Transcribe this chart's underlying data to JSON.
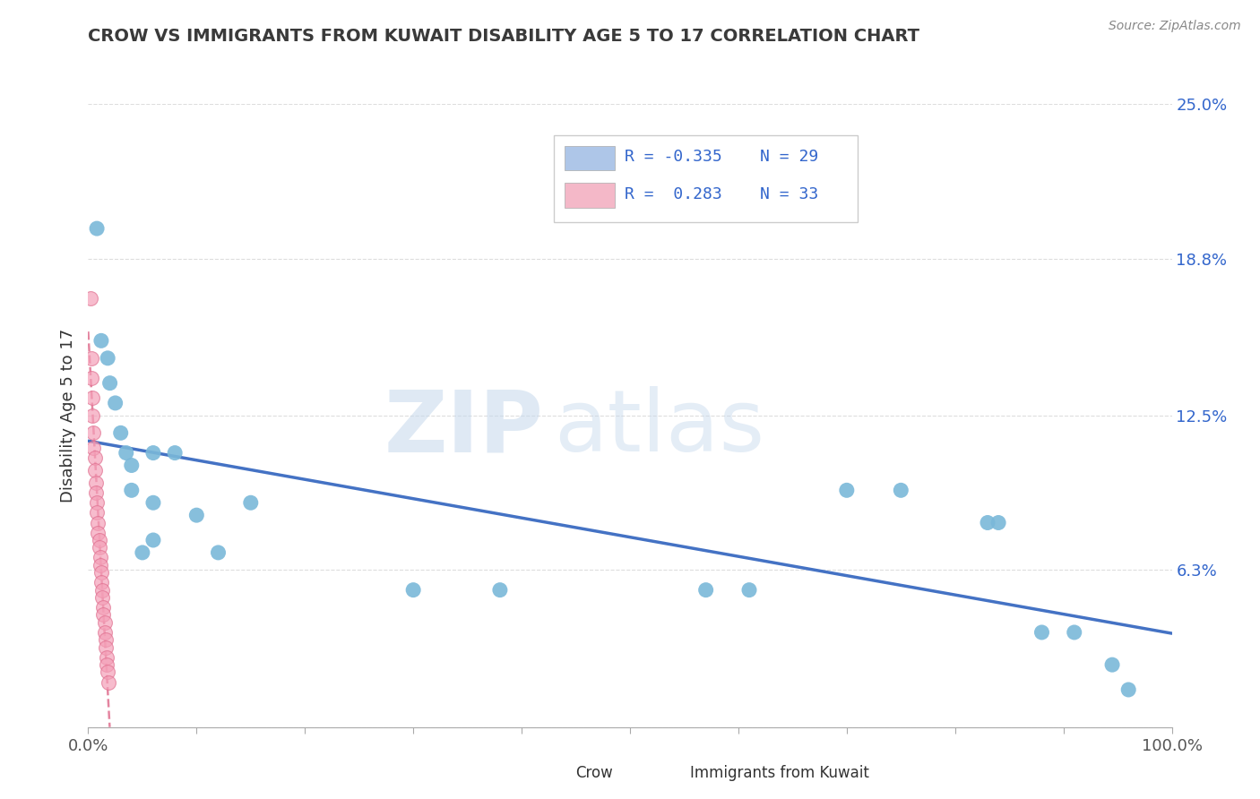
{
  "title": "CROW VS IMMIGRANTS FROM KUWAIT DISABILITY AGE 5 TO 17 CORRELATION CHART",
  "source": "Source: ZipAtlas.com",
  "ylabel": "Disability Age 5 to 17",
  "xlim": [
    0.0,
    1.0
  ],
  "ylim": [
    0.0,
    0.25
  ],
  "yticks": [
    0.0,
    0.063,
    0.125,
    0.188,
    0.25
  ],
  "ytick_labels": [
    "",
    "6.3%",
    "12.5%",
    "18.8%",
    "25.0%"
  ],
  "xtick_labels": [
    "0.0%",
    "100.0%"
  ],
  "watermark_zip": "ZIP",
  "watermark_atlas": "atlas",
  "legend_entries": [
    {
      "label_r": "R = -0.335",
      "label_n": "N = 29",
      "color": "#aec6e8"
    },
    {
      "label_r": "R =  0.283",
      "label_n": "N = 33",
      "color": "#f4b8c8"
    }
  ],
  "crow_color": "#7ab8d9",
  "crow_edge": "none",
  "immigrant_color": "#f4a0b8",
  "immigrant_edge": "#e07090",
  "crow_line_color": "#4472c4",
  "immigrant_line_color": "#e07090",
  "crow_points": [
    [
      0.008,
      0.2
    ],
    [
      0.012,
      0.155
    ],
    [
      0.018,
      0.148
    ],
    [
      0.02,
      0.138
    ],
    [
      0.025,
      0.13
    ],
    [
      0.03,
      0.118
    ],
    [
      0.035,
      0.11
    ],
    [
      0.04,
      0.105
    ],
    [
      0.06,
      0.11
    ],
    [
      0.08,
      0.11
    ],
    [
      0.04,
      0.095
    ],
    [
      0.06,
      0.09
    ],
    [
      0.1,
      0.085
    ],
    [
      0.15,
      0.09
    ],
    [
      0.06,
      0.075
    ],
    [
      0.12,
      0.07
    ],
    [
      0.05,
      0.07
    ],
    [
      0.3,
      0.055
    ],
    [
      0.38,
      0.055
    ],
    [
      0.57,
      0.055
    ],
    [
      0.61,
      0.055
    ],
    [
      0.7,
      0.095
    ],
    [
      0.75,
      0.095
    ],
    [
      0.83,
      0.082
    ],
    [
      0.84,
      0.082
    ],
    [
      0.88,
      0.038
    ],
    [
      0.91,
      0.038
    ],
    [
      0.945,
      0.025
    ],
    [
      0.96,
      0.015
    ]
  ],
  "immigrant_points": [
    [
      0.002,
      0.172
    ],
    [
      0.003,
      0.148
    ],
    [
      0.003,
      0.14
    ],
    [
      0.004,
      0.132
    ],
    [
      0.004,
      0.125
    ],
    [
      0.005,
      0.118
    ],
    [
      0.005,
      0.112
    ],
    [
      0.006,
      0.108
    ],
    [
      0.006,
      0.103
    ],
    [
      0.007,
      0.098
    ],
    [
      0.007,
      0.094
    ],
    [
      0.008,
      0.09
    ],
    [
      0.008,
      0.086
    ],
    [
      0.009,
      0.082
    ],
    [
      0.009,
      0.078
    ],
    [
      0.01,
      0.075
    ],
    [
      0.01,
      0.072
    ],
    [
      0.011,
      0.068
    ],
    [
      0.011,
      0.065
    ],
    [
      0.012,
      0.062
    ],
    [
      0.012,
      0.058
    ],
    [
      0.013,
      0.055
    ],
    [
      0.013,
      0.052
    ],
    [
      0.014,
      0.048
    ],
    [
      0.014,
      0.045
    ],
    [
      0.015,
      0.042
    ],
    [
      0.015,
      0.038
    ],
    [
      0.016,
      0.035
    ],
    [
      0.016,
      0.032
    ],
    [
      0.017,
      0.028
    ],
    [
      0.017,
      0.025
    ],
    [
      0.018,
      0.022
    ],
    [
      0.019,
      0.018
    ]
  ],
  "grid_color": "#dddddd",
  "spine_color": "#aaaaaa",
  "title_color": "#3a3a3a",
  "source_color": "#888888",
  "tick_color_y": "#3366cc",
  "tick_color_x": "#555555"
}
